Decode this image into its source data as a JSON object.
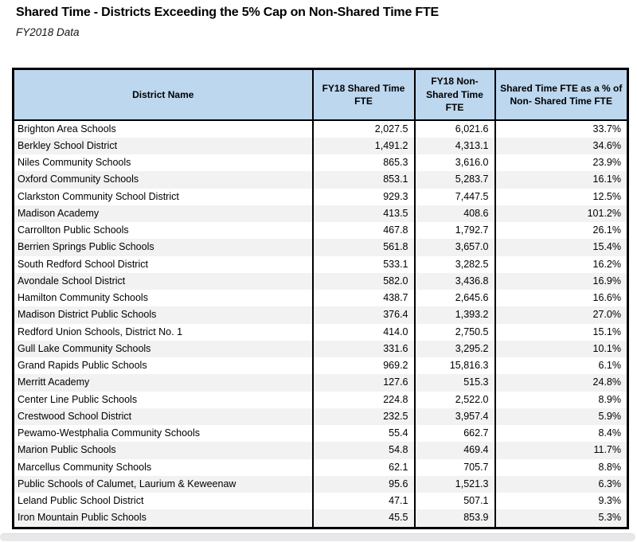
{
  "header": {
    "title": "Shared Time - Districts Exceeding the 5% Cap on Non-Shared Time FTE",
    "subtitle": "FY2018 Data"
  },
  "table": {
    "columns": [
      {
        "label": "District Name"
      },
      {
        "label": "FY18 Shared Time FTE"
      },
      {
        "label": "FY18 Non-Shared Time FTE"
      },
      {
        "label": "Shared Time FTE as a % of Non- Shared Time FTE"
      }
    ],
    "rows": [
      {
        "district": "Brighton Area Schools",
        "shared_fte": "2,027.5",
        "non_shared_fte": "6,021.6",
        "pct_of_non_shared": "33.7%"
      },
      {
        "district": "Berkley School District",
        "shared_fte": "1,491.2",
        "non_shared_fte": "4,313.1",
        "pct_of_non_shared": "34.6%"
      },
      {
        "district": "Niles Community Schools",
        "shared_fte": "865.3",
        "non_shared_fte": "3,616.0",
        "pct_of_non_shared": "23.9%"
      },
      {
        "district": "Oxford Community Schools",
        "shared_fte": "853.1",
        "non_shared_fte": "5,283.7",
        "pct_of_non_shared": "16.1%"
      },
      {
        "district": "Clarkston Community School District",
        "shared_fte": "929.3",
        "non_shared_fte": "7,447.5",
        "pct_of_non_shared": "12.5%"
      },
      {
        "district": "Madison Academy",
        "shared_fte": "413.5",
        "non_shared_fte": "408.6",
        "pct_of_non_shared": "101.2%"
      },
      {
        "district": "Carrollton Public Schools",
        "shared_fte": "467.8",
        "non_shared_fte": "1,792.7",
        "pct_of_non_shared": "26.1%"
      },
      {
        "district": "Berrien Springs Public Schools",
        "shared_fte": "561.8",
        "non_shared_fte": "3,657.0",
        "pct_of_non_shared": "15.4%"
      },
      {
        "district": "South Redford School District",
        "shared_fte": "533.1",
        "non_shared_fte": "3,282.5",
        "pct_of_non_shared": "16.2%"
      },
      {
        "district": "Avondale School District",
        "shared_fte": "582.0",
        "non_shared_fte": "3,436.8",
        "pct_of_non_shared": "16.9%"
      },
      {
        "district": "Hamilton Community Schools",
        "shared_fte": "438.7",
        "non_shared_fte": "2,645.6",
        "pct_of_non_shared": "16.6%"
      },
      {
        "district": "Madison District Public Schools",
        "shared_fte": "376.4",
        "non_shared_fte": "1,393.2",
        "pct_of_non_shared": "27.0%"
      },
      {
        "district": "Redford Union Schools, District No. 1",
        "shared_fte": "414.0",
        "non_shared_fte": "2,750.5",
        "pct_of_non_shared": "15.1%"
      },
      {
        "district": "Gull Lake Community Schools",
        "shared_fte": "331.6",
        "non_shared_fte": "3,295.2",
        "pct_of_non_shared": "10.1%"
      },
      {
        "district": "Grand Rapids Public Schools",
        "shared_fte": "969.2",
        "non_shared_fte": "15,816.3",
        "pct_of_non_shared": "6.1%"
      },
      {
        "district": "Merritt Academy",
        "shared_fte": "127.6",
        "non_shared_fte": "515.3",
        "pct_of_non_shared": "24.8%"
      },
      {
        "district": "Center Line Public Schools",
        "shared_fte": "224.8",
        "non_shared_fte": "2,522.0",
        "pct_of_non_shared": "8.9%"
      },
      {
        "district": "Crestwood School District",
        "shared_fte": "232.5",
        "non_shared_fte": "3,957.4",
        "pct_of_non_shared": "5.9%"
      },
      {
        "district": "Pewamo-Westphalia Community Schools",
        "shared_fte": "55.4",
        "non_shared_fte": "662.7",
        "pct_of_non_shared": "8.4%"
      },
      {
        "district": "Marion Public Schools",
        "shared_fte": "54.8",
        "non_shared_fte": "469.4",
        "pct_of_non_shared": "11.7%"
      },
      {
        "district": "Marcellus Community Schools",
        "shared_fte": "62.1",
        "non_shared_fte": "705.7",
        "pct_of_non_shared": "8.8%"
      },
      {
        "district": "Public Schools of Calumet, Laurium & Keweenaw",
        "shared_fte": "95.6",
        "non_shared_fte": "1,521.3",
        "pct_of_non_shared": "6.3%"
      },
      {
        "district": "Leland Public School District",
        "shared_fte": "47.1",
        "non_shared_fte": "507.1",
        "pct_of_non_shared": "9.3%"
      },
      {
        "district": "Iron Mountain Public Schools",
        "shared_fte": "45.5",
        "non_shared_fte": "853.9",
        "pct_of_non_shared": "5.3%"
      }
    ]
  },
  "colors": {
    "header_fill": "#BDD7EE",
    "row_alt_fill": "#F2F2F2",
    "border": "#000000",
    "scrollbar_fill": "#E8E8EA"
  }
}
